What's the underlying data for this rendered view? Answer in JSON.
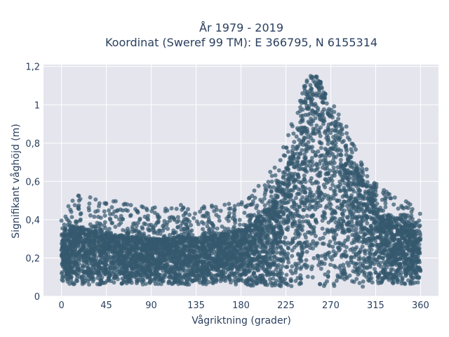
{
  "chart_data": {
    "type": "scatter",
    "title_line1": "År 1979 - 2019",
    "title_line2": "Koordinat (Sweref 99 TM): E 366795, N 6155314",
    "xlabel": "Vågriktning (grader)",
    "ylabel": "Signifikant våghöjd (m)",
    "xlim": [
      -18,
      378
    ],
    "ylim": [
      0,
      1.21
    ],
    "x_ticks": [
      0,
      45,
      90,
      135,
      180,
      225,
      270,
      315,
      360
    ],
    "x_tick_labels": [
      "0",
      "45",
      "90",
      "135",
      "180",
      "225",
      "270",
      "315",
      "360"
    ],
    "y_ticks": [
      0,
      0.2,
      0.4,
      0.6,
      0.8,
      1,
      1.2
    ],
    "y_tick_labels": [
      "0",
      "0,2",
      "0,4",
      "0,6",
      "0,8",
      "1",
      "1,2"
    ],
    "grid": true,
    "marker_color": "#34586e",
    "marker_opacity": 0.7,
    "envelope": {
      "direction": [
        0,
        10,
        20,
        30,
        45,
        60,
        75,
        90,
        105,
        120,
        135,
        150,
        165,
        180,
        190,
        200,
        210,
        220,
        230,
        240,
        245,
        250,
        255,
        260,
        265,
        270,
        280,
        290,
        300,
        310,
        320,
        330,
        340,
        350,
        360
      ],
      "min_height": [
        0.07,
        0.06,
        0.06,
        0.06,
        0.06,
        0.06,
        0.06,
        0.06,
        0.06,
        0.06,
        0.06,
        0.06,
        0.06,
        0.06,
        0.05,
        0.05,
        0.05,
        0.05,
        0.05,
        0.05,
        0.05,
        0.05,
        0.05,
        0.05,
        0.05,
        0.05,
        0.05,
        0.05,
        0.05,
        0.05,
        0.06,
        0.06,
        0.06,
        0.06,
        0.07
      ],
      "dense_upper": [
        0.32,
        0.35,
        0.36,
        0.35,
        0.33,
        0.32,
        0.31,
        0.3,
        0.3,
        0.31,
        0.31,
        0.32,
        0.33,
        0.34,
        0.37,
        0.42,
        0.48,
        0.58,
        0.72,
        0.9,
        1.02,
        1.08,
        1.1,
        1.08,
        1.02,
        0.95,
        0.82,
        0.72,
        0.62,
        0.52,
        0.45,
        0.42,
        0.4,
        0.38,
        0.33
      ],
      "max_height": [
        0.45,
        0.5,
        0.56,
        0.52,
        0.51,
        0.5,
        0.48,
        0.47,
        0.48,
        0.48,
        0.47,
        0.48,
        0.49,
        0.5,
        0.53,
        0.6,
        0.66,
        0.76,
        0.9,
        1.08,
        1.14,
        1.16,
        1.16,
        1.12,
        1.08,
        1.04,
        0.95,
        0.84,
        0.74,
        0.63,
        0.57,
        0.54,
        0.51,
        0.49,
        0.43
      ]
    }
  }
}
